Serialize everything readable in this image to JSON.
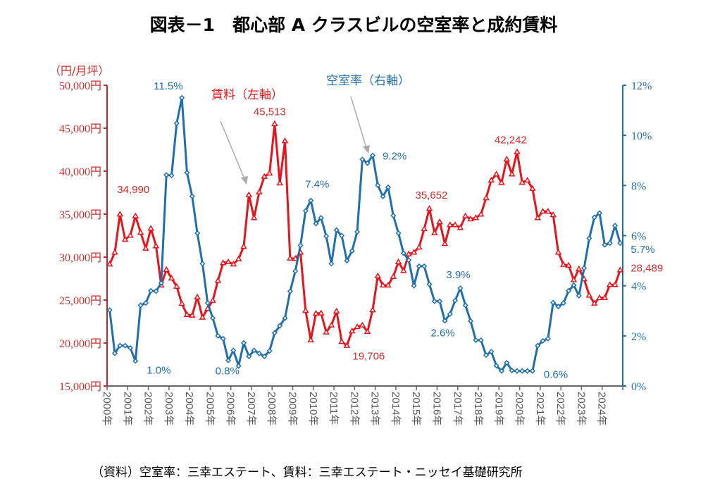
{
  "chart_data": {
    "type": "line",
    "title": "図表－1　都心部 A クラスビルの空室率と成約賃料",
    "source": "（資料）空室率：三幸エステート、賃料：三幸エステート・ニッセイ基礎研究所",
    "left_axis": {
      "unit_label": "（円/月坪）",
      "range": [
        15000,
        50000
      ],
      "ticks": [
        "15,000円",
        "20,000円",
        "25,000円",
        "30,000円",
        "35,000円",
        "40,000円",
        "45,000円",
        "50,000円"
      ],
      "tick_values": [
        15000,
        20000,
        25000,
        30000,
        35000,
        40000,
        45000,
        50000
      ]
    },
    "right_axis": {
      "range": [
        0,
        12
      ],
      "ticks": [
        "0%",
        "2%",
        "4%",
        "6%",
        "8%",
        "10%",
        "12%"
      ],
      "tick_values": [
        0,
        2,
        4,
        6,
        8,
        10,
        12
      ]
    },
    "x_axis": {
      "frequency": "quarterly",
      "start": "2000Q1",
      "end": "2024Q4",
      "tick_labels": [
        "2000年",
        "2001年",
        "2002年",
        "2003年",
        "2004年",
        "2005年",
        "2006年",
        "2007年",
        "2008年",
        "2009年",
        "2010年",
        "2011年",
        "2012年",
        "2013年",
        "2014年",
        "2015年",
        "2016年",
        "2017年",
        "2018年",
        "2019年",
        "2020年",
        "2021年",
        "2022年",
        "2023年",
        "2024年"
      ]
    },
    "series": [
      {
        "name": "賃料（左軸）",
        "axis": "left",
        "color": "#e8141c",
        "marker": "triangle",
        "values": [
          29180,
          30550,
          34990,
          32050,
          32520,
          34780,
          32870,
          31010,
          33340,
          31290,
          26720,
          28550,
          27540,
          26580,
          24590,
          23300,
          23220,
          25350,
          22980,
          24000,
          24950,
          27270,
          29320,
          29450,
          29180,
          29780,
          31230,
          37240,
          34570,
          37570,
          39370,
          39750,
          45513,
          38610,
          43520,
          29860,
          29830,
          30550,
          23770,
          20350,
          23440,
          23470,
          21260,
          22080,
          23710,
          20160,
          19706,
          21390,
          21890,
          22080,
          21330,
          23850,
          27810,
          26720,
          26720,
          27730,
          29450,
          28420,
          30360,
          30550,
          31150,
          33280,
          35652,
          32810,
          34100,
          31560,
          33750,
          33750,
          33420,
          34780,
          34430,
          34570,
          34980,
          36890,
          38940,
          39650,
          38660,
          41390,
          39650,
          42242,
          38690,
          38940,
          37980,
          34570,
          35330,
          35330,
          34920,
          30550,
          29130,
          29040,
          27350,
          28630,
          27460,
          25550,
          24620,
          25270,
          25270,
          26780,
          26780,
          28489
        ]
      },
      {
        "name": "空室率（右軸）",
        "axis": "right",
        "color": "#1f6fb0",
        "marker": "diamond",
        "values": [
          3.03,
          1.3,
          1.61,
          1.61,
          1.52,
          1.0,
          3.22,
          3.31,
          3.8,
          3.78,
          4.11,
          8.42,
          8.4,
          10.48,
          11.5,
          8.51,
          7.57,
          6.1,
          4.88,
          3.31,
          2.71,
          2.0,
          1.89,
          1.02,
          1.42,
          0.8,
          1.72,
          1.18,
          1.42,
          1.3,
          1.18,
          1.4,
          2.12,
          2.4,
          2.71,
          3.78,
          4.58,
          5.61,
          6.99,
          7.4,
          6.48,
          6.71,
          5.98,
          4.88,
          6.22,
          6.0,
          5.0,
          5.39,
          6.15,
          9.04,
          8.89,
          9.2,
          8.01,
          7.56,
          7.93,
          6.8,
          6.1,
          5.3,
          5.02,
          4.0,
          4.78,
          4.78,
          4.06,
          3.38,
          3.38,
          2.6,
          2.87,
          3.41,
          3.9,
          3.22,
          2.59,
          1.83,
          1.83,
          1.23,
          1.37,
          0.81,
          0.6,
          0.93,
          0.62,
          0.6,
          0.6,
          0.6,
          0.6,
          1.61,
          1.8,
          1.89,
          3.33,
          3.17,
          3.31,
          3.8,
          4.02,
          3.6,
          4.7,
          5.89,
          6.73,
          6.9,
          5.63,
          5.7,
          6.4,
          5.7
        ]
      }
    ],
    "annotations": [
      {
        "series": 0,
        "index": 2,
        "text": "34,990"
      },
      {
        "series": 0,
        "index": 32,
        "text": "45,513"
      },
      {
        "series": 0,
        "index": 46,
        "text": "19,706"
      },
      {
        "series": 0,
        "index": 62,
        "text": "35,652"
      },
      {
        "series": 0,
        "index": 79,
        "text": "42,242"
      },
      {
        "series": 0,
        "index": 99,
        "text": "28,489"
      },
      {
        "series": 1,
        "index": 14,
        "text": "11.5%"
      },
      {
        "series": 1,
        "index": 5,
        "text": "1.0%"
      },
      {
        "series": 1,
        "index": 25,
        "text": "0.8%"
      },
      {
        "series": 1,
        "index": 39,
        "text": "7.4%"
      },
      {
        "series": 1,
        "index": 51,
        "text": "9.2%"
      },
      {
        "series": 1,
        "index": 65,
        "text": "2.6%"
      },
      {
        "series": 1,
        "index": 68,
        "text": "3.9%"
      },
      {
        "series": 1,
        "index": 82,
        "text": "0.6%"
      },
      {
        "series": 1,
        "index": 99,
        "text": "5.7%"
      }
    ],
    "series_labels": {
      "rent": "賃料（左軸）",
      "vacancy": "空室率（右軸）"
    }
  }
}
